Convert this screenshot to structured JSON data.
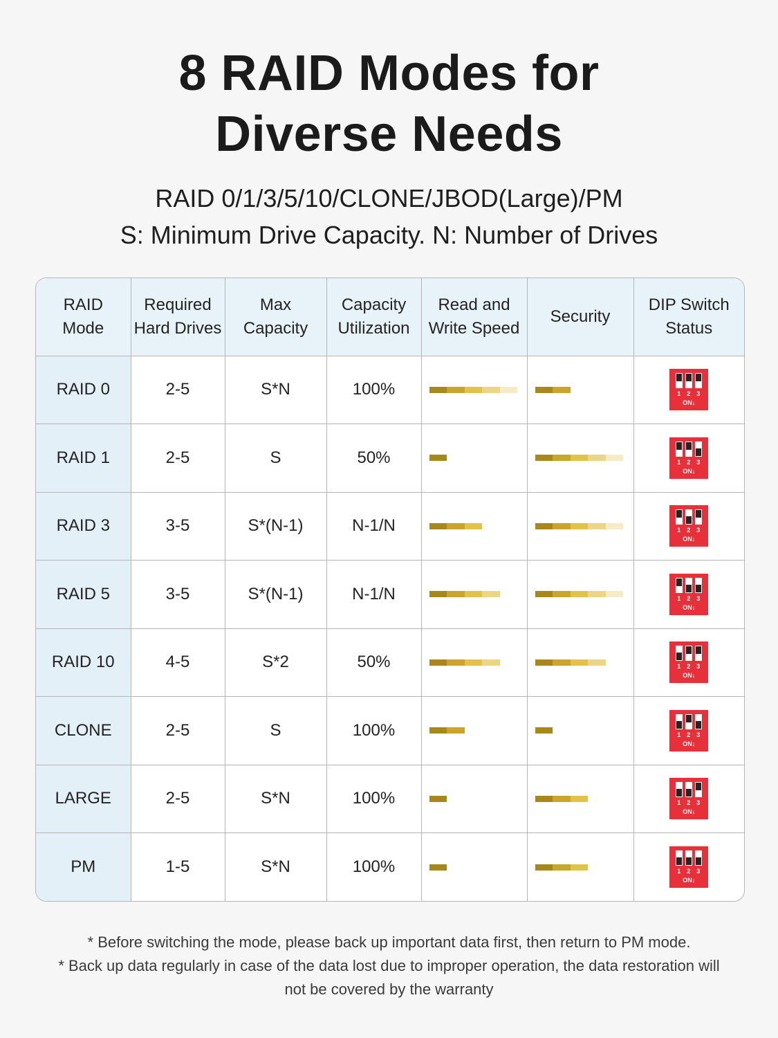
{
  "title_line1": "8 RAID Modes for",
  "title_line2": "Diverse Needs",
  "subtitle_line1": "RAID 0/1/3/5/10/CLONE/JBOD(Large)/PM",
  "subtitle_line2": "S: Minimum Drive Capacity. N: Number of Drives",
  "colors": {
    "bar_segments": [
      "#a8871b",
      "#cba52a",
      "#e0c347",
      "#ecd585",
      "#f7ebc5"
    ],
    "dip_switch_body": "#e8303a",
    "mode_column_bg": "#e3f0f7"
  },
  "table": {
    "headers": [
      {
        "line1": "RAID",
        "line2": "Mode"
      },
      {
        "line1": "Required",
        "line2": "Hard Drives"
      },
      {
        "line1": "Max",
        "line2": "Capacity"
      },
      {
        "line1": "Capacity",
        "line2": "Utilization"
      },
      {
        "line1": "Read and",
        "line2": "Write Speed"
      },
      {
        "line1": "Security",
        "line2": ""
      },
      {
        "line1": "DIP Switch",
        "line2": "Status"
      }
    ],
    "rows": [
      {
        "mode": "RAID 0",
        "drives": "2-5",
        "max": "S*N",
        "util": "100%",
        "speed": 5,
        "security": 2,
        "dip": [
          1,
          1,
          1
        ]
      },
      {
        "mode": "RAID 1",
        "drives": "2-5",
        "max": "S",
        "util": "50%",
        "speed": 1,
        "security": 5,
        "dip": [
          1,
          1,
          0
        ]
      },
      {
        "mode": "RAID 3",
        "drives": "3-5",
        "max": "S*(N-1)",
        "util": "N-1/N",
        "speed": 3,
        "security": 5,
        "dip": [
          1,
          0,
          1
        ]
      },
      {
        "mode": "RAID 5",
        "drives": "3-5",
        "max": "S*(N-1)",
        "util": "N-1/N",
        "speed": 4,
        "security": 5,
        "dip": [
          1,
          0,
          0
        ]
      },
      {
        "mode": "RAID 10",
        "drives": "4-5",
        "max": "S*2",
        "util": "50%",
        "speed": 4,
        "security": 4,
        "dip": [
          0,
          1,
          1
        ]
      },
      {
        "mode": "CLONE",
        "drives": "2-5",
        "max": "S",
        "util": "100%",
        "speed": 2,
        "security": 1,
        "dip": [
          0,
          1,
          0
        ]
      },
      {
        "mode": "LARGE",
        "drives": "2-5",
        "max": "S*N",
        "util": "100%",
        "speed": 1,
        "security": 3,
        "dip": [
          0,
          0,
          1
        ]
      },
      {
        "mode": "PM",
        "drives": "1-5",
        "max": "S*N",
        "util": "100%",
        "speed": 1,
        "security": 3,
        "dip": [
          0,
          0,
          0
        ]
      }
    ],
    "dip_labels": {
      "n1": "1",
      "n2": "2",
      "n3": "3",
      "on": "ON↓"
    }
  },
  "notes": {
    "line1": "* Before switching the mode, please back up important data first, then return to PM mode.",
    "line2": "* Back up data regularly in case of the data lost due to improper operation, the data restoration will",
    "line3": "not be covered by the warranty"
  }
}
